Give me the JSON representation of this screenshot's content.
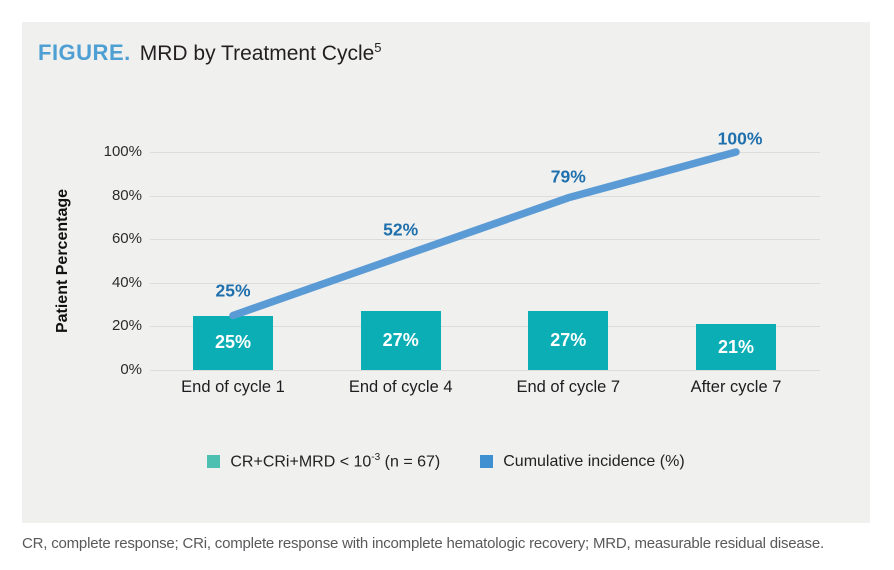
{
  "header": {
    "figure_label": "FIGURE.",
    "title": "MRD by Treatment Cycle",
    "title_superscript": "5"
  },
  "chart_data": {
    "type": "bar+line",
    "title": "MRD by Treatment Cycle",
    "categories": [
      "End of cycle 1",
      "End of cycle 4",
      "End of cycle 7",
      "After cycle 7"
    ],
    "series": [
      {
        "name": "CR+CRi+MRD < 10-3 (n = 67)",
        "type": "bar",
        "values": [
          25,
          27,
          27,
          21
        ],
        "color": "#0caeb5"
      },
      {
        "name": "Cumulative incidence (%)",
        "type": "line",
        "values": [
          25,
          52,
          79,
          100
        ],
        "color": "#5b9bd5"
      }
    ],
    "bar_labels": [
      "25%",
      "27%",
      "27%",
      "21%"
    ],
    "line_labels": [
      "25%",
      "52%",
      "79%",
      "100%"
    ],
    "ylabel": "Patient Percentage",
    "xlabel": "",
    "ylim": [
      0,
      100
    ],
    "yticks": [
      "0%",
      "20%",
      "40%",
      "60%",
      "80%",
      "100%"
    ],
    "grid": true,
    "legend_position": "bottom-center"
  },
  "legend": {
    "bar_pre": "CR+CRi+MRD < 10",
    "bar_sup": "-3",
    "bar_post": " (n = 67)",
    "line_label": "Cumulative incidence (%)"
  },
  "footnote": "CR, complete response; CRi, complete response with incomplete hematologic recovery; MRD, measurable residual disease.",
  "colors": {
    "panel_bg": "#f0f0ef",
    "bar_teal": "#0caeb5",
    "legend_teal": "#4ec0b2",
    "line_blue": "#5b9bd5",
    "value_label_blue": "#1f70ad",
    "figure_label_blue": "#4e9fd3",
    "gridline": "#dcdcdc",
    "footnote_gray": "#58595b"
  }
}
